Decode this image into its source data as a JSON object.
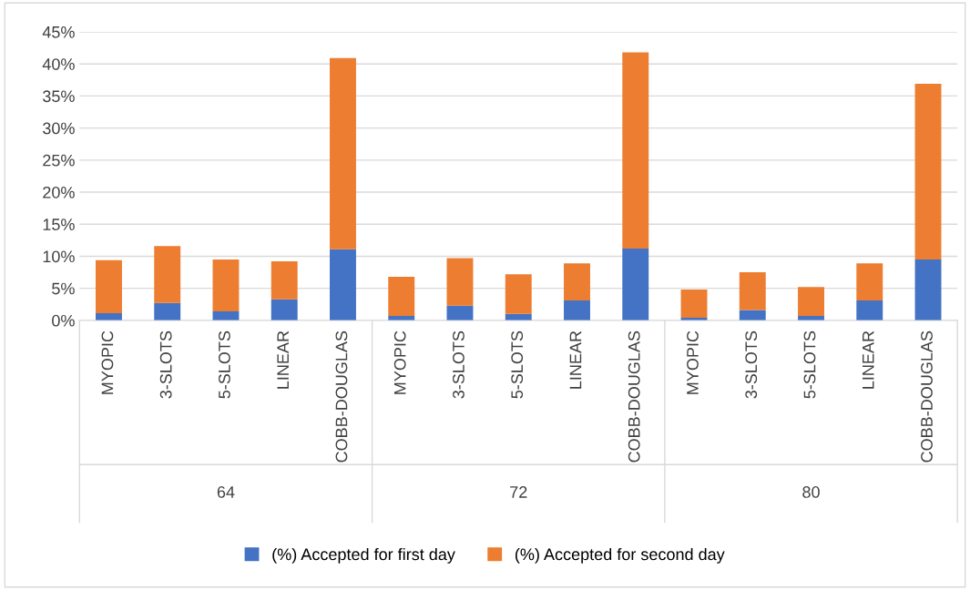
{
  "chart_data": {
    "type": "bar",
    "stacked": true,
    "categories": [
      "MYOPIC",
      "3-SLOTS",
      "5-SLOTS",
      "LINEAR",
      "COBB-DOUGLAS",
      "MYOPIC",
      "3-SLOTS",
      "5-SLOTS",
      "LINEAR",
      "COBB-DOUGLAS",
      "MYOPIC",
      "3-SLOTS",
      "5-SLOTS",
      "LINEAR",
      "COBB-DOUGLAS"
    ],
    "series": [
      {
        "name": "(%) Accepted for first day",
        "color": "#4472c4",
        "values": [
          1.1,
          2.7,
          1.4,
          3.3,
          11.1,
          0.7,
          2.3,
          1.0,
          3.1,
          11.2,
          0.4,
          1.6,
          0.7,
          3.1,
          9.5
        ]
      },
      {
        "name": "(%) Accepted for second day",
        "color": "#ed7d31",
        "values": [
          8.3,
          8.9,
          8.1,
          5.9,
          29.8,
          6.1,
          7.4,
          6.2,
          5.8,
          30.6,
          4.4,
          5.9,
          4.5,
          5.8,
          27.4
        ]
      }
    ],
    "annotations": [
      "64",
      "72",
      "80"
    ],
    "ylim": [
      0,
      45
    ],
    "yticks": [
      {
        "value": 0,
        "label": "0%"
      },
      {
        "value": 5,
        "label": "5%"
      },
      {
        "value": 10,
        "label": "10%"
      },
      {
        "value": 15,
        "label": "15%"
      },
      {
        "value": 20,
        "label": "20%"
      },
      {
        "value": 25,
        "label": "25%"
      },
      {
        "value": 30,
        "label": "30%"
      },
      {
        "value": 35,
        "label": "35%"
      },
      {
        "value": 40,
        "label": "40%"
      },
      {
        "value": 45,
        "label": "45%"
      }
    ],
    "grid": "y",
    "legend": "bottom"
  }
}
